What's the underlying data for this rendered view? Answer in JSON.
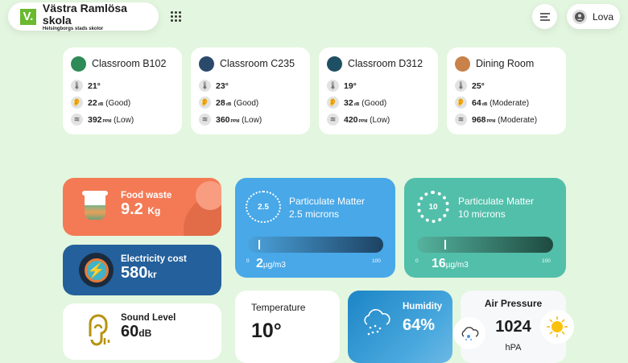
{
  "header": {
    "logo_letter": "V.",
    "school": "Västra Ramlösa skola",
    "subtitle": "Helsingborgs stads skolor",
    "user": "Lova"
  },
  "rooms": [
    {
      "name": "Classroom B102",
      "temp": "21°",
      "db": "22",
      "db_unit": "dB",
      "db_status": "(Good)",
      "ppm": "392",
      "ppm_unit": "PPM",
      "ppm_status": "(Low)",
      "icon_color": "#2e8b57"
    },
    {
      "name": "Classroom C235",
      "temp": "23°",
      "db": "28",
      "db_unit": "dB",
      "db_status": "(Good)",
      "ppm": "360",
      "ppm_unit": "PPM",
      "ppm_status": "(Low)",
      "icon_color": "#2b4a6b"
    },
    {
      "name": "Classroom D312",
      "temp": "19°",
      "db": "32",
      "db_unit": "dB",
      "db_status": "(Good)",
      "ppm": "420",
      "ppm_unit": "PPM",
      "ppm_status": "(Low)",
      "icon_color": "#1f4f63"
    },
    {
      "name": "Dining Room",
      "temp": "25°",
      "db": "64",
      "db_unit": "dB",
      "db_status": "(Moderate)",
      "ppm": "968",
      "ppm_unit": "PPM",
      "ppm_status": "(Moderate)",
      "icon_color": "#c8824a"
    }
  ],
  "food": {
    "label": "Food waste",
    "value": "9.2",
    "unit": "Kg"
  },
  "electricity": {
    "label": "Electricity cost",
    "value": "580",
    "unit": "kr"
  },
  "sound": {
    "label": "Sound Level",
    "value": "60",
    "unit": "dB"
  },
  "pm25": {
    "badge": "2.5",
    "title": "Particulate Matter",
    "subtitle": "2.5 microns",
    "min": "0",
    "max": "100",
    "value": "2",
    "unit": "µg/m3",
    "fraction": 0.02
  },
  "pm10": {
    "badge": "10",
    "title": "Particulate Matter",
    "subtitle": "10 microns",
    "min": "0",
    "max": "100",
    "value": "16",
    "unit": "µg/m3",
    "fraction": 0.16
  },
  "temperature": {
    "label": "Temperature",
    "value": "10°"
  },
  "humidity": {
    "label": "Humidity",
    "value": "64%"
  },
  "pressure": {
    "label": "Air Pressure",
    "value": "1024",
    "unit": "hPA"
  }
}
